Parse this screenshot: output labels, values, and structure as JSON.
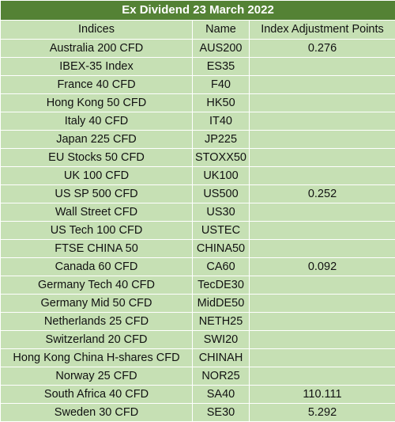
{
  "title": "Ex Dividend 23 March 2022",
  "columns": [
    "Indices",
    "Name",
    "Index Adjustment Points"
  ],
  "rows": [
    {
      "index": "Australia 200 CFD",
      "name": "AUS200",
      "points": "0.276"
    },
    {
      "index": "IBEX-35 Index",
      "name": "ES35",
      "points": ""
    },
    {
      "index": "France 40 CFD",
      "name": "F40",
      "points": ""
    },
    {
      "index": "Hong Kong 50 CFD",
      "name": "HK50",
      "points": ""
    },
    {
      "index": "Italy 40 CFD",
      "name": "IT40",
      "points": ""
    },
    {
      "index": "Japan 225 CFD",
      "name": "JP225",
      "points": ""
    },
    {
      "index": "EU Stocks 50 CFD",
      "name": "STOXX50",
      "points": ""
    },
    {
      "index": "UK 100 CFD",
      "name": "UK100",
      "points": ""
    },
    {
      "index": "US SP 500 CFD",
      "name": "US500",
      "points": "0.252"
    },
    {
      "index": "Wall Street CFD",
      "name": "US30",
      "points": ""
    },
    {
      "index": "US Tech 100 CFD",
      "name": "USTEC",
      "points": ""
    },
    {
      "index": "FTSE CHINA 50",
      "name": "CHINA50",
      "points": ""
    },
    {
      "index": "Canada 60 CFD",
      "name": "CA60",
      "points": "0.092"
    },
    {
      "index": "Germany Tech 40 CFD",
      "name": "TecDE30",
      "points": ""
    },
    {
      "index": "Germany Mid 50 CFD",
      "name": "MidDE50",
      "points": ""
    },
    {
      "index": "Netherlands 25 CFD",
      "name": "NETH25",
      "points": ""
    },
    {
      "index": "Switzerland 20 CFD",
      "name": "SWI20",
      "points": ""
    },
    {
      "index": "Hong Kong China H-shares CFD",
      "name": "CHINAH",
      "points": ""
    },
    {
      "index": "Norway 25 CFD",
      "name": "NOR25",
      "points": ""
    },
    {
      "index": "South Africa 40 CFD",
      "name": "SA40",
      "points": "110.111"
    },
    {
      "index": "Sweden 30 CFD",
      "name": "SE30",
      "points": "5.292"
    }
  ]
}
